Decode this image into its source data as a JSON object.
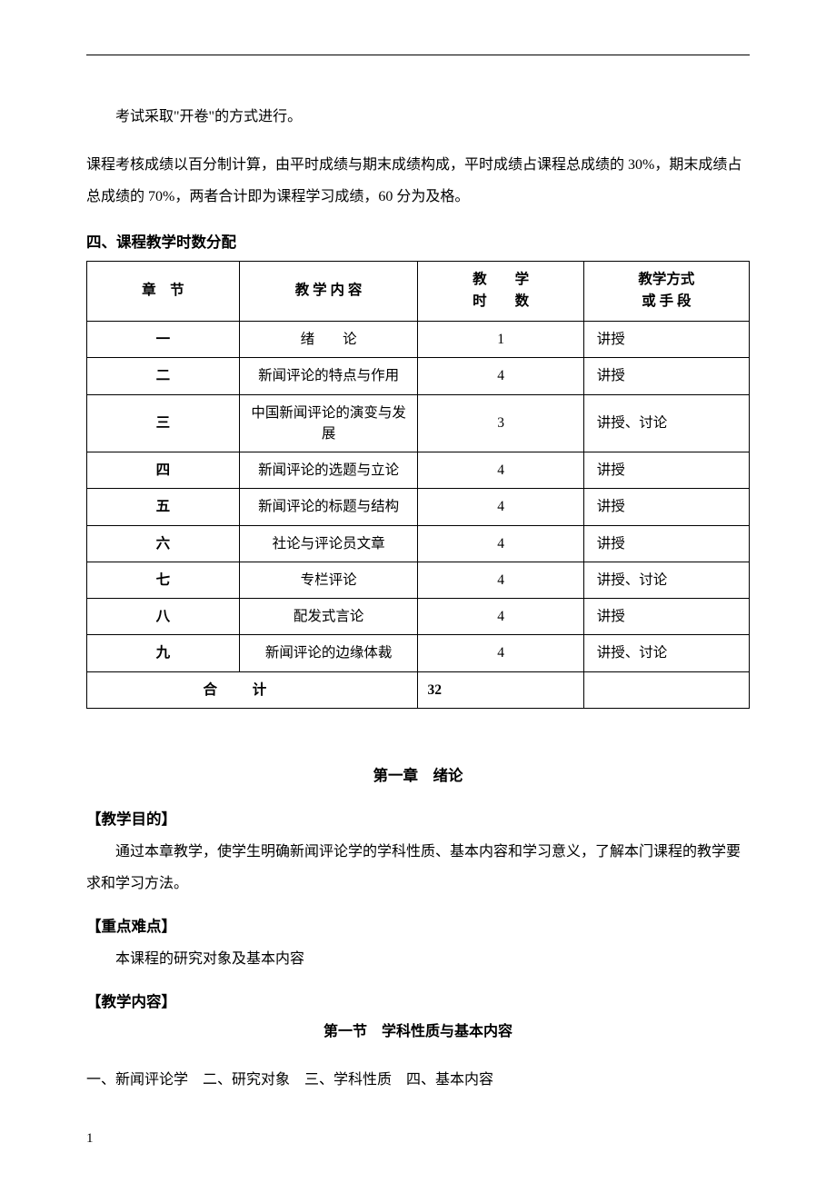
{
  "hr": "",
  "para1": "考试采取\"开卷\"的方式进行。",
  "para2": "课程考核成绩以百分制计算，由平时成绩与期末成绩构成，平时成绩占课程总成绩的 30%，期末成绩占总成绩的 70%，两者合计即为课程学习成绩，60 分为及格。",
  "section4_heading": "四、课程教学时数分配",
  "table": {
    "headers": {
      "chapter": "章　节",
      "content": "教 学 内 容",
      "hours_line1": "教　　学",
      "hours_line2": "时　　数",
      "method_line1": "教学方式",
      "method_line2": "或 手 段"
    },
    "rows": [
      {
        "chapter": "一",
        "content": "绪　　论",
        "hours": "1",
        "method": "讲授"
      },
      {
        "chapter": "二",
        "content": "新闻评论的特点与作用",
        "hours": "4",
        "method": "讲授"
      },
      {
        "chapter": "三",
        "content": "中国新闻评论的演变与发展",
        "hours": "3",
        "method": "讲授、讨论"
      },
      {
        "chapter": "四",
        "content": "新闻评论的选题与立论",
        "hours": "4",
        "method": "讲授"
      },
      {
        "chapter": "五",
        "content": "新闻评论的标题与结构",
        "hours": "4",
        "method": "讲授"
      },
      {
        "chapter": "六",
        "content": "社论与评论员文章",
        "hours": "4",
        "method": "讲授"
      },
      {
        "chapter": "七",
        "content": "专栏评论",
        "hours": "4",
        "method": "讲授、讨论"
      },
      {
        "chapter": "八",
        "content": "配发式言论",
        "hours": "4",
        "method": "讲授"
      },
      {
        "chapter": "九",
        "content": "新闻评论的边缘体裁",
        "hours": "4",
        "method": "讲授、讨论"
      }
    ],
    "total": {
      "label": "合计",
      "hours": "32",
      "method": ""
    }
  },
  "chapter1": {
    "title": "第一章　绪论",
    "objective_heading": "【教学目的】",
    "objective_text": "通过本章教学，使学生明确新闻评论学的学科性质、基本内容和学习意义，了解本门课程的教学要求和学习方法。",
    "difficulty_heading": "【重点难点】",
    "difficulty_text": "本课程的研究对象及基本内容",
    "content_heading": "【教学内容】",
    "section1_title": "第一节　学科性质与基本内容",
    "section1_items": "一、新闻评论学　二、研究对象　三、学科性质　四、基本内容"
  },
  "page_number": "1"
}
